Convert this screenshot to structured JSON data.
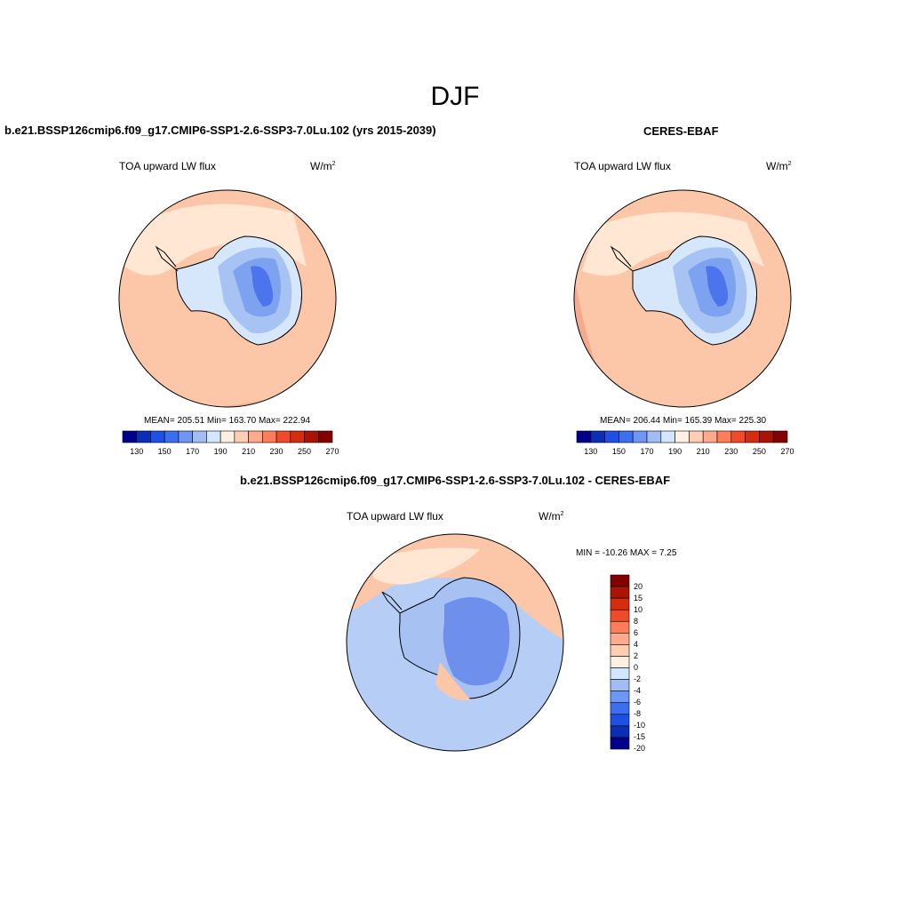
{
  "figure": {
    "season": "DJF",
    "diff_title": "b.e21.BSSP126cmip6.f09_g17.CMIP6-SSP1-2.6-SSP3-7.0Lu.102 - CERES-EBAF"
  },
  "panels": {
    "model": {
      "title": "b.e21.BSSP126cmip6.f09_g17.CMIP6-SSP1-2.6-SSP3-7.0Lu.102 (yrs 2015-2039)",
      "variable": "TOA upward LW flux",
      "units_base": "W/m",
      "units_exp": "2",
      "stats": "MEAN= 205.51  Min= 163.70  Max= 222.94"
    },
    "obs": {
      "title": "CERES-EBAF",
      "variable": "TOA upward LW flux",
      "units_base": "W/m",
      "units_exp": "2",
      "stats": "MEAN= 206.44  Min= 165.39  Max= 225.30"
    },
    "diff": {
      "variable": "TOA upward LW flux",
      "units_base": "W/m",
      "units_exp": "2",
      "stats": "MIN = -10.26 MAX =   7.25"
    }
  },
  "colorbars": {
    "abs": {
      "tick_labels": [
        "130",
        "150",
        "170",
        "190",
        "210",
        "230",
        "250",
        "270"
      ],
      "colors": [
        "#00008c",
        "#0a2fb4",
        "#1e50e6",
        "#3c6ef0",
        "#6e96f5",
        "#a0bef5",
        "#d2e6ff",
        "#fff0e1",
        "#ffcdb4",
        "#ffaa8c",
        "#ff7d5a",
        "#f04b28",
        "#d72d0f",
        "#aa1405",
        "#820000"
      ]
    },
    "diff": {
      "tick_labels": [
        "20",
        "15",
        "10",
        "8",
        "6",
        "4",
        "2",
        "0",
        "-2",
        "-4",
        "-6",
        "-8",
        "-10",
        "-15",
        "-20"
      ],
      "colors": [
        "#820000",
        "#aa1405",
        "#d72d0f",
        "#f04b28",
        "#ff7d5a",
        "#ffaa8c",
        "#ffcdb4",
        "#fff0e1",
        "#d2e6ff",
        "#a0bef5",
        "#6e96f5",
        "#3c6ef0",
        "#1e50e6",
        "#0a2fb4",
        "#00008c"
      ]
    }
  },
  "map_colors": {
    "ocean_warm": "#fcc6a8",
    "ocean_pale": "#ffebd9",
    "ice_pale": "#d6e7fb",
    "land_mid": "#a7c3f3",
    "land_blue": "#7da2ef",
    "land_deep": "#4c74ec",
    "diff_blue_light": "#b6cdf5",
    "diff_blue": "#a8c1f3",
    "diff_dark": "#3e66e6"
  }
}
